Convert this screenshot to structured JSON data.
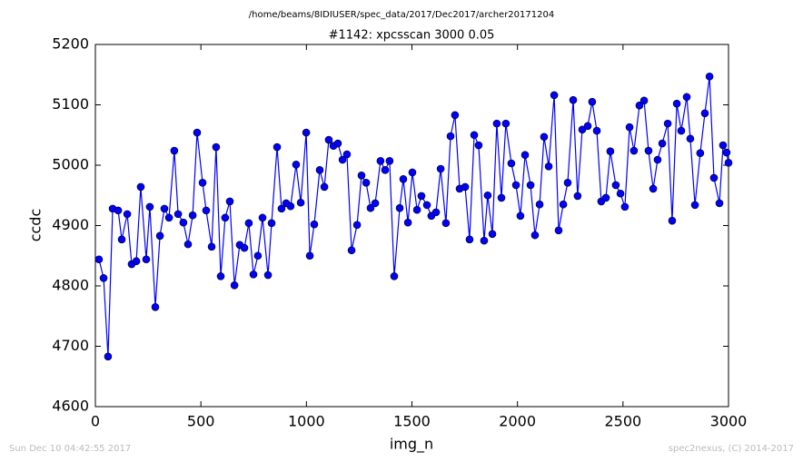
{
  "chart_data": {
    "type": "line",
    "suptitle": "/home/beams/8IDIUSER/spec_data/2017/Dec2017/archer20171204",
    "title": "#1142: xpcsscan 3000 0.05",
    "xlabel": "img_n",
    "ylabel": "ccdc",
    "footer_left": "Sun Dec 10 04:42:55 2017",
    "footer_right": "spec2nexus, (C) 2014-2017",
    "xlim": [
      0,
      3000
    ],
    "xticks": [
      0,
      500,
      1000,
      1500,
      2000,
      2500,
      3000
    ],
    "ylim": [
      4600,
      5200
    ],
    "yticks": [
      4600,
      4700,
      4800,
      4900,
      5000,
      5100,
      5200
    ],
    "marker": "circle",
    "x": [
      17,
      39,
      60,
      82,
      108,
      125,
      151,
      172,
      194,
      215,
      241,
      258,
      284,
      306,
      327,
      349,
      374,
      392,
      417,
      439,
      461,
      482,
      508,
      525,
      551,
      572,
      594,
      615,
      637,
      659,
      684,
      706,
      727,
      749,
      770,
      792,
      818,
      835,
      861,
      882,
      904,
      925,
      951,
      973,
      999,
      1016,
      1037,
      1063,
      1085,
      1106,
      1128,
      1149,
      1171,
      1192,
      1214,
      1240,
      1261,
      1283,
      1304,
      1326,
      1351,
      1373,
      1394,
      1416,
      1442,
      1459,
      1481,
      1502,
      1524,
      1545,
      1571,
      1592,
      1614,
      1636,
      1661,
      1683,
      1704,
      1726,
      1752,
      1773,
      1795,
      1816,
      1842,
      1859,
      1881,
      1902,
      1924,
      1945,
      1971,
      1993,
      2014,
      2036,
      2062,
      2083,
      2105,
      2126,
      2148,
      2174,
      2195,
      2217,
      2238,
      2264,
      2285,
      2307,
      2333,
      2354,
      2376,
      2397,
      2419,
      2440,
      2466,
      2488,
      2509,
      2531,
      2552,
      2578,
      2600,
      2621,
      2643,
      2664,
      2686,
      2712,
      2733,
      2755,
      2776,
      2802,
      2819,
      2841,
      2866,
      2888,
      2910,
      2931,
      2957,
      2974,
      2991,
      3000
    ],
    "series": [
      {
        "name": "ccdc",
        "color": "#0000ff",
        "values": [
          4844,
          4813,
          4683,
          4928,
          4925,
          4877,
          4919,
          4836,
          4841,
          4964,
          4844,
          4931,
          4765,
          4883,
          4928,
          4913,
          5024,
          4919,
          4905,
          4869,
          4917,
          5054,
          4971,
          4925,
          4865,
          5030,
          4816,
          4913,
          4940,
          4801,
          4868,
          4863,
          4904,
          4819,
          4850,
          4913,
          4818,
          4904,
          5030,
          4928,
          4937,
          4932,
          5001,
          4938,
          5054,
          4850,
          4902,
          4992,
          4964,
          5042,
          5032,
          5036,
          5009,
          5018,
          4859,
          4901,
          4983,
          4971,
          4929,
          4937,
          5007,
          4992,
          5007,
          4816,
          4929,
          4977,
          4905,
          4988,
          4926,
          4949,
          4934,
          4916,
          4922,
          4994,
          4904,
          5048,
          5083,
          4961,
          4964,
          4877,
          5050,
          5033,
          4875,
          4950,
          4886,
          5069,
          4946,
          5069,
          5003,
          4967,
          4916,
          5017,
          4967,
          4884,
          4935,
          5047,
          4998,
          5116,
          4892,
          4935,
          4971,
          5108,
          4949,
          5059,
          5065,
          5105,
          5057,
          4940,
          4946,
          5023,
          4967,
          4953,
          4931,
          5063,
          5024,
          5099,
          5107,
          5024,
          4961,
          5009,
          5036,
          5069,
          4908,
          5102,
          5057,
          5113,
          5044,
          4934,
          5020,
          5086,
          5147,
          4979,
          4937,
          5033,
          5021,
          5004
        ]
      }
    ]
  }
}
